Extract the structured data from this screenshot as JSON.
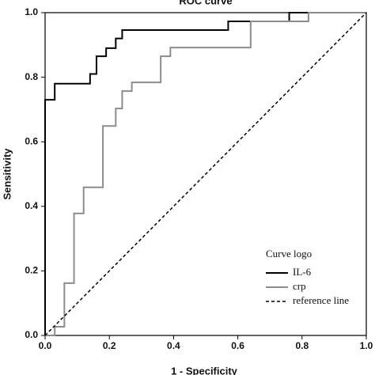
{
  "chart_data": {
    "type": "line",
    "title": "ROC curve",
    "x_label": "1 - Specificity",
    "y_label": "Sensitivity",
    "legend_title": "Curve logo",
    "legend": "bottom-right",
    "xlim": [
      0,
      1
    ],
    "ylim": [
      0,
      1
    ],
    "xticks": [
      {
        "value": 0,
        "label": "0.0"
      },
      0.2,
      0.4,
      0.6,
      0.8,
      {
        "value": 1,
        "label": "1.0"
      }
    ],
    "yticks": [
      {
        "value": 0,
        "label": "0.0"
      },
      0.2,
      0.4,
      0.6,
      0.8,
      {
        "value": 1,
        "label": "1.0"
      }
    ],
    "series": [
      {
        "name": "IL-6",
        "color": "#000000",
        "style": "solid",
        "x": [
          0,
          0,
          0.03,
          0.03,
          0.14,
          0.14,
          0.16,
          0.16,
          0.19,
          0.19,
          0.22,
          0.22,
          0.24,
          0.24,
          0.57,
          0.57,
          0.76,
          0.76,
          1
        ],
        "values": [
          0,
          0.73,
          0.73,
          0.78,
          0.78,
          0.81,
          0.81,
          0.865,
          0.865,
          0.89,
          0.89,
          0.92,
          0.92,
          0.946,
          0.946,
          0.973,
          0.973,
          1,
          1
        ]
      },
      {
        "name": "crp",
        "color": "#8c8c8c",
        "style": "solid",
        "x": [
          0,
          0.03,
          0.03,
          0.06,
          0.06,
          0.09,
          0.09,
          0.12,
          0.12,
          0.18,
          0.18,
          0.22,
          0.22,
          0.24,
          0.24,
          0.27,
          0.27,
          0.36,
          0.36,
          0.39,
          0.39,
          0.64,
          0.64,
          0.82,
          0.82,
          1
        ],
        "values": [
          0,
          0,
          0.027,
          0.027,
          0.162,
          0.162,
          0.378,
          0.378,
          0.459,
          0.459,
          0.649,
          0.649,
          0.703,
          0.703,
          0.757,
          0.757,
          0.784,
          0.784,
          0.865,
          0.865,
          0.892,
          0.892,
          0.973,
          0.973,
          1,
          1
        ]
      },
      {
        "name": "reference line",
        "color": "#000000",
        "style": "dashed",
        "x": [
          0,
          1
        ],
        "values": [
          0,
          1
        ]
      }
    ]
  }
}
